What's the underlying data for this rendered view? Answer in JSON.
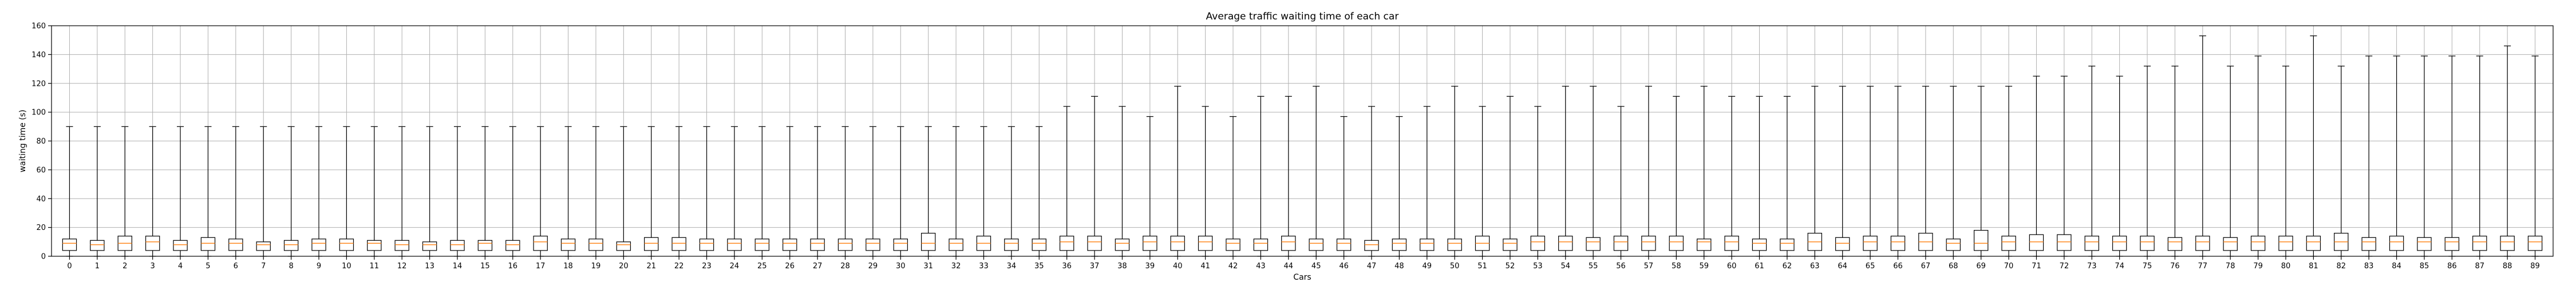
{
  "chart_data": {
    "type": "boxplot",
    "title": "Average traffic waiting time of each car",
    "xlabel": "Cars",
    "ylabel": "waiting time (s)",
    "ylim": [
      0,
      160
    ],
    "yticks": [
      0,
      20,
      40,
      60,
      80,
      100,
      120,
      140,
      160
    ],
    "grid": true,
    "colors": {
      "box": "#000000",
      "median": "#ff7f0e",
      "grid": "#b0b0b0",
      "background": "#ffffff"
    },
    "categories": [
      "0",
      "1",
      "2",
      "3",
      "4",
      "5",
      "6",
      "7",
      "8",
      "9",
      "10",
      "11",
      "12",
      "13",
      "14",
      "15",
      "16",
      "17",
      "18",
      "19",
      "20",
      "21",
      "22",
      "23",
      "24",
      "25",
      "26",
      "27",
      "28",
      "29",
      "30",
      "31",
      "32",
      "33",
      "34",
      "35",
      "36",
      "37",
      "38",
      "39",
      "40",
      "41",
      "42",
      "43",
      "44",
      "45",
      "46",
      "47",
      "48",
      "49",
      "50",
      "51",
      "52",
      "53",
      "54",
      "55",
      "56",
      "57",
      "58",
      "59",
      "60",
      "61",
      "62",
      "63",
      "64",
      "65",
      "66",
      "67",
      "68",
      "69",
      "70",
      "71",
      "72",
      "73",
      "74",
      "75",
      "76",
      "77",
      "78",
      "79",
      "80",
      "81",
      "82",
      "83",
      "84",
      "85",
      "86",
      "87",
      "88",
      "89"
    ],
    "whisker_low": [
      0,
      0,
      0,
      0,
      0,
      0,
      0,
      0,
      0,
      0,
      0,
      0,
      0,
      0,
      0,
      0,
      0,
      0,
      0,
      0,
      0,
      0,
      0,
      0,
      0,
      0,
      0,
      0,
      0,
      0,
      0,
      0,
      0,
      0,
      0,
      0,
      0,
      0,
      0,
      0,
      0,
      0,
      0,
      0,
      0,
      0,
      0,
      0,
      0,
      0,
      0,
      0,
      0,
      0,
      0,
      0,
      0,
      0,
      0,
      0,
      0,
      0,
      0,
      0,
      0,
      0,
      0,
      0,
      0,
      0,
      0,
      0,
      0,
      0,
      0,
      0,
      0,
      0,
      0,
      0,
      0,
      0,
      0,
      0,
      0,
      0,
      0,
      0,
      0,
      0
    ],
    "q1": [
      4,
      4,
      4,
      4,
      4,
      4,
      4,
      4,
      4,
      4,
      4,
      4,
      4,
      4,
      4,
      4,
      4,
      4,
      4,
      4,
      4,
      4,
      4,
      4,
      4,
      4,
      4,
      4,
      4,
      4,
      4,
      4,
      4,
      4,
      4,
      4,
      4,
      4,
      4,
      4,
      4,
      4,
      4,
      4,
      4,
      4,
      4,
      4,
      4,
      4,
      4,
      4,
      4,
      4,
      4,
      4,
      4,
      4,
      4,
      4,
      4,
      4,
      4,
      4,
      4,
      4,
      4,
      4,
      4,
      4,
      4,
      4,
      4,
      4,
      4,
      4,
      4,
      4,
      4,
      4,
      4,
      4,
      4,
      4,
      4,
      4,
      4,
      4,
      4,
      4
    ],
    "median": [
      9,
      8,
      9,
      10,
      8,
      9,
      9,
      8,
      8,
      9,
      9,
      9,
      8,
      8,
      8,
      9,
      8,
      10,
      9,
      9,
      8,
      9,
      9,
      9,
      9,
      9,
      9,
      9,
      9,
      9,
      9,
      9,
      9,
      9,
      9,
      9,
      10,
      10,
      9,
      10,
      10,
      10,
      9,
      9,
      10,
      9,
      9,
      8,
      9,
      9,
      9,
      9,
      9,
      10,
      10,
      10,
      10,
      10,
      10,
      10,
      10,
      9,
      9,
      10,
      9,
      10,
      10,
      10,
      9,
      9,
      10,
      10,
      10,
      10,
      10,
      10,
      10,
      10,
      10,
      10,
      10,
      10,
      10,
      10,
      10,
      10,
      10,
      10,
      10,
      10
    ],
    "q3": [
      12,
      11,
      14,
      14,
      11,
      13,
      12,
      10,
      11,
      12,
      12,
      11,
      11,
      10,
      11,
      11,
      11,
      14,
      12,
      12,
      10,
      13,
      13,
      12,
      12,
      12,
      12,
      12,
      12,
      12,
      12,
      16,
      12,
      14,
      12,
      12,
      14,
      14,
      12,
      14,
      14,
      14,
      12,
      12,
      14,
      12,
      12,
      11,
      12,
      12,
      12,
      14,
      12,
      14,
      14,
      13,
      14,
      14,
      14,
      12,
      14,
      12,
      12,
      16,
      13,
      14,
      14,
      16,
      12,
      18,
      14,
      15,
      15,
      14,
      14,
      14,
      13,
      14,
      13,
      14,
      14,
      14,
      16,
      13,
      14,
      13,
      13,
      14,
      14,
      14
    ],
    "whisker_high": [
      90,
      90,
      90,
      90,
      90,
      90,
      90,
      90,
      90,
      90,
      90,
      90,
      90,
      90,
      90,
      90,
      90,
      90,
      90,
      90,
      90,
      90,
      90,
      90,
      90,
      90,
      90,
      90,
      90,
      90,
      90,
      90,
      90,
      90,
      90,
      90,
      104,
      111,
      104,
      97,
      118,
      104,
      97,
      111,
      111,
      118,
      97,
      104,
      97,
      104,
      118,
      104,
      111,
      104,
      118,
      118,
      104,
      118,
      111,
      118,
      111,
      111,
      111,
      118,
      118,
      118,
      118,
      118,
      118,
      118,
      118,
      125,
      125,
      132,
      125,
      132,
      132,
      153,
      132,
      139,
      132,
      153,
      132,
      139,
      139,
      139,
      139,
      139,
      146,
      139
    ]
  }
}
